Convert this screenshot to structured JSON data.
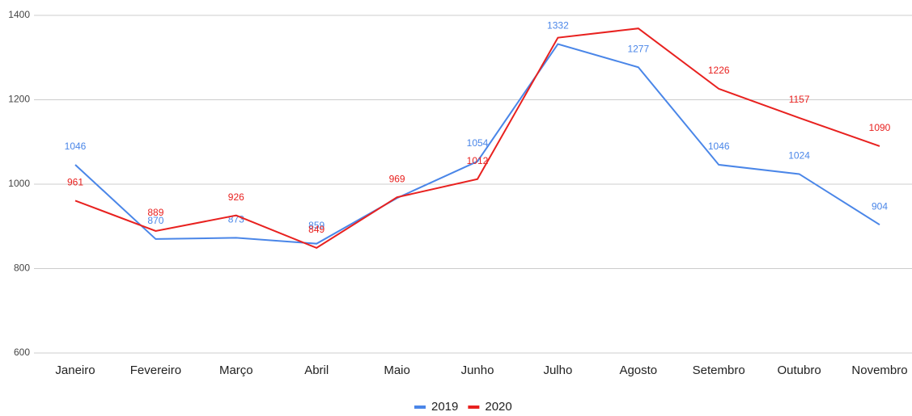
{
  "chart_data": {
    "type": "line",
    "categories": [
      "Janeiro",
      "Fevereiro",
      "Março",
      "Abril",
      "Maio",
      "Junho",
      "Julho",
      "Agosto",
      "Setembro",
      "Outubro",
      "Novembro"
    ],
    "series": [
      {
        "name": "2019",
        "color": "#4a86e8",
        "values": [
          1046,
          870,
          873,
          859,
          967,
          1054,
          1332,
          1277,
          1046,
          1024,
          904
        ],
        "value_labels": [
          "1046",
          "870",
          "873",
          "859",
          null,
          "1054",
          "1332",
          "1277",
          "1046",
          "1024",
          "904"
        ]
      },
      {
        "name": "2020",
        "color": "#e8211f",
        "values": [
          961,
          889,
          926,
          849,
          969,
          1012,
          1347,
          1369,
          1226,
          1157,
          1090
        ],
        "value_labels": [
          "961",
          "889",
          "926",
          "849",
          "969",
          "1012",
          null,
          null,
          "1226",
          "1157",
          "1090"
        ]
      }
    ],
    "ylim": [
      600,
      1400
    ],
    "yticks": [
      600,
      800,
      1000,
      1200,
      1400
    ],
    "grid": true,
    "legend": "bottom"
  }
}
